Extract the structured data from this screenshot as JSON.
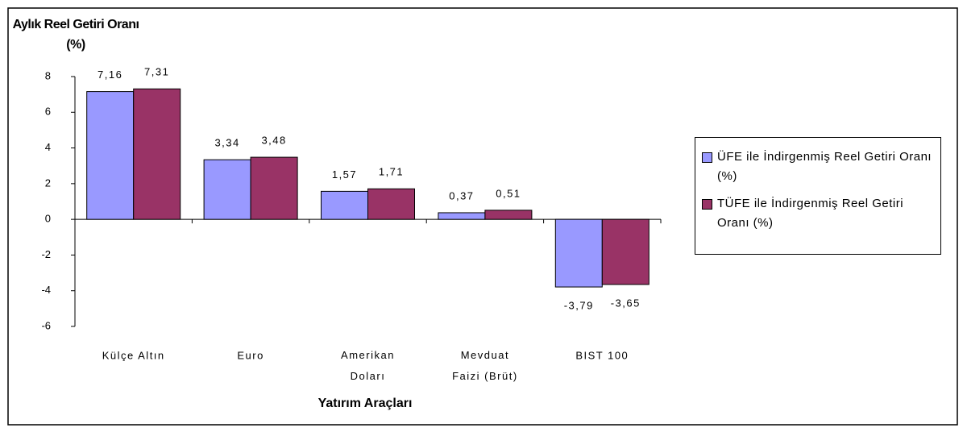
{
  "chart_data": {
    "type": "bar",
    "title": "Aylık Reel Getiri Oranı (%)",
    "x_label": "Yatırım Araçları",
    "categories": [
      "Külçe Altın",
      "Euro",
      "Amerikan Doları",
      "Mevduat Faizi (Brüt)",
      "BIST 100"
    ],
    "series": [
      {
        "name": "ÜFE ile İndirgenmiş Reel Getiri Oranı (%)",
        "color": "#9999ff",
        "values": [
          7.16,
          3.34,
          1.57,
          0.37,
          -3.79
        ],
        "value_labels": [
          "7,16",
          "3,34",
          "1,57",
          "0,37",
          "-3,79"
        ]
      },
      {
        "name": "TÜFE ile İndirgenmiş Reel Getiri Oranı (%)",
        "color": "#993366",
        "values": [
          7.31,
          3.48,
          1.71,
          0.51,
          -3.65
        ],
        "value_labels": [
          "7,31",
          "3,48",
          "1,71",
          "0,51",
          "-3,65"
        ]
      }
    ],
    "ylim": [
      -6,
      8
    ],
    "yticks": [
      -6,
      -4,
      -2,
      0,
      2,
      4,
      6,
      8
    ],
    "legend": "right"
  }
}
